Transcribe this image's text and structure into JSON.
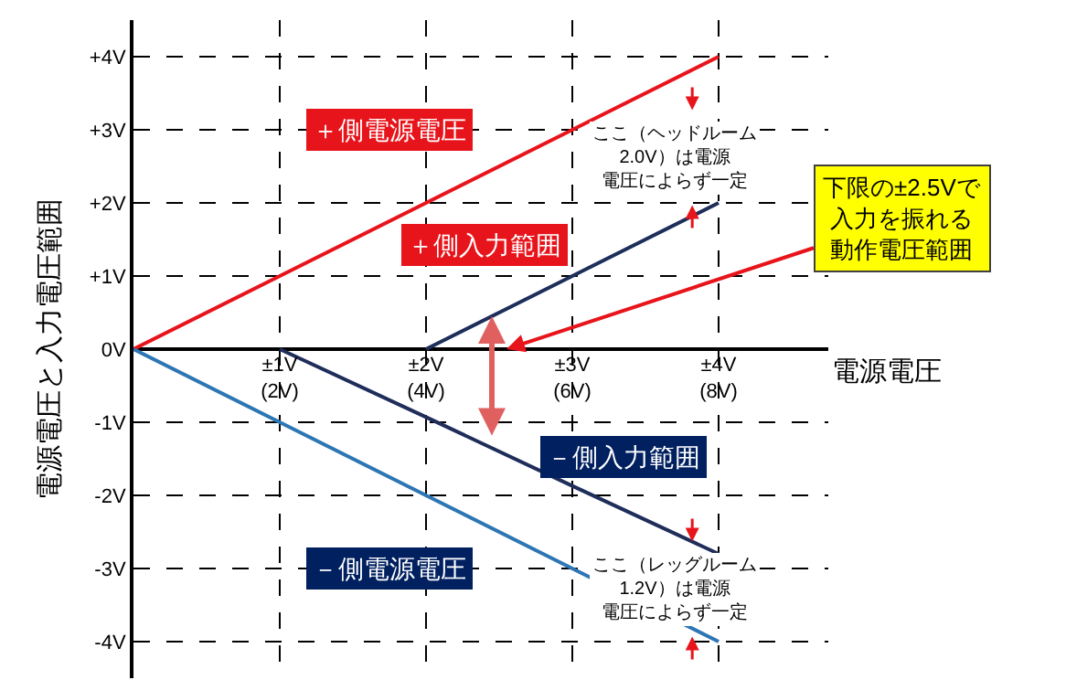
{
  "chart_data": {
    "type": "line",
    "xlabel": "電源電圧",
    "ylabel": "電源電圧と入力電圧範囲",
    "categories": [
      null,
      "±1V\n(2V)",
      "±2V\n(4V)",
      "±3V\n(6V)",
      "±4V\n(8V)"
    ],
    "ylim": [
      -4.5,
      4.5
    ],
    "yticks": [
      {
        "value": -4,
        "label": "-4V"
      },
      {
        "value": -3,
        "label": "-3V"
      },
      {
        "value": -2,
        "label": "-2V"
      },
      {
        "value": -1,
        "label": "-1V"
      },
      {
        "value": 0,
        "label": "0V"
      },
      {
        "value": 1,
        "label": "+1V"
      },
      {
        "value": 2,
        "label": "+2V"
      },
      {
        "value": 3,
        "label": "+3V"
      },
      {
        "value": 4,
        "label": "+4V"
      }
    ],
    "grid": true,
    "legend": false,
    "marker": "none",
    "line_style": "solid",
    "series": [
      {
        "name": "＋側電源電圧",
        "color": "#e8141b",
        "values": [
          0,
          1,
          2,
          3,
          4
        ]
      },
      {
        "name": "＋側入力範囲",
        "color": "#1f2d5a",
        "values": [
          null,
          null,
          0,
          1,
          2
        ]
      },
      {
        "name": "－側入力範囲",
        "color": "#1f2d5a",
        "values": [
          null,
          0,
          -0.93,
          -1.87,
          -2.8
        ]
      },
      {
        "name": "－側電源電圧",
        "color": "#2e75b6",
        "values": [
          0,
          -1,
          -2,
          -3,
          -4
        ]
      }
    ],
    "annotations": [
      "ここ（ヘッドルーム2.0V）は電源電圧によらず一定",
      "ここ（レッグルーム1.2V）は電源電圧によらず一定",
      "下限の±2.5Vで入力を振れる動作電圧範囲"
    ]
  }
}
